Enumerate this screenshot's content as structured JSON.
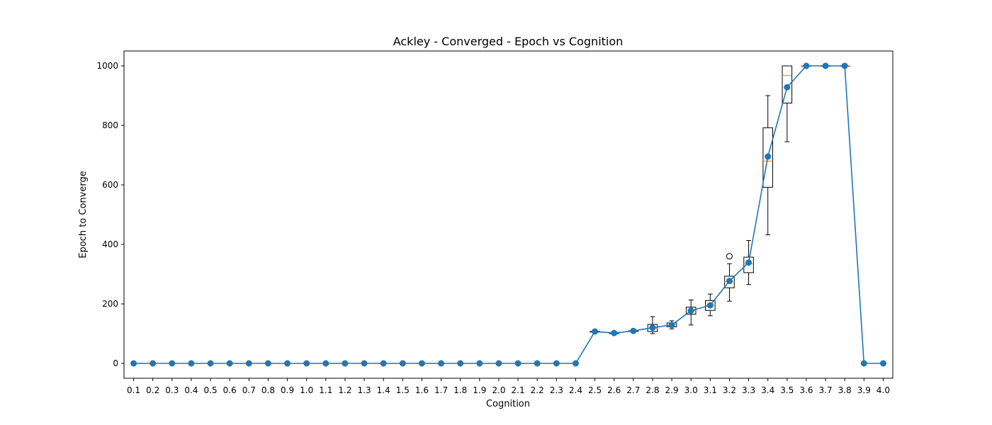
{
  "chart_data": {
    "type": "line",
    "title": "Ackley - Converged - Epoch vs Cognition",
    "xlabel": "Cognition",
    "ylabel": "Epoch to Converge",
    "ylim": [
      -50,
      1050
    ],
    "yticks": [
      0,
      200,
      400,
      600,
      800,
      1000
    ],
    "categories": [
      "0.1",
      "0.2",
      "0.3",
      "0.4",
      "0.5",
      "0.6",
      "0.7",
      "0.8",
      "0.9",
      "1.0",
      "1.1",
      "1.2",
      "1.3",
      "1.4",
      "1.5",
      "1.6",
      "1.7",
      "1.8",
      "1.9",
      "2.0",
      "2.1",
      "2.2",
      "2.3",
      "2.4",
      "2.5",
      "2.6",
      "2.7",
      "2.8",
      "2.9",
      "3.0",
      "3.1",
      "3.2",
      "3.3",
      "3.4",
      "3.5",
      "3.6",
      "3.7",
      "3.8",
      "3.9",
      "4.0"
    ],
    "series": [
      {
        "values": [
          0,
          0,
          0,
          0,
          0,
          0,
          0,
          0,
          0,
          0,
          0,
          0,
          0,
          0,
          0,
          0,
          0,
          0,
          0,
          0,
          0,
          0,
          0,
          0,
          107,
          102,
          109,
          120,
          129,
          177,
          195,
          277,
          339,
          695,
          928,
          1000,
          1000,
          1000,
          0,
          0
        ],
        "color": "#1f77b4"
      }
    ],
    "boxplots": [
      {
        "category": "2.5",
        "whislo": 105,
        "q1": 105,
        "med": 107,
        "q3": 108,
        "whishi": 109,
        "fliers": []
      },
      {
        "category": "2.6",
        "whislo": 98,
        "q1": 100,
        "med": 102,
        "q3": 104,
        "whishi": 106,
        "fliers": []
      },
      {
        "category": "2.7",
        "whislo": 106,
        "q1": 107,
        "med": 109,
        "q3": 110,
        "whishi": 112,
        "fliers": []
      },
      {
        "category": "2.8",
        "whislo": 100,
        "q1": 107,
        "med": 118,
        "q3": 131,
        "whishi": 157,
        "fliers": []
      },
      {
        "category": "2.9",
        "whislo": 116,
        "q1": 123,
        "med": 129,
        "q3": 136,
        "whishi": 143,
        "fliers": []
      },
      {
        "category": "3.0",
        "whislo": 129,
        "q1": 165,
        "med": 177,
        "q3": 189,
        "whishi": 213,
        "fliers": []
      },
      {
        "category": "3.1",
        "whislo": 160,
        "q1": 178,
        "med": 195,
        "q3": 211,
        "whishi": 233,
        "fliers": []
      },
      {
        "category": "3.2",
        "whislo": 209,
        "q1": 254,
        "med": 275,
        "q3": 293,
        "whishi": 335,
        "fliers": [
          360
        ]
      },
      {
        "category": "3.3",
        "whislo": 265,
        "q1": 305,
        "med": 335,
        "q3": 357,
        "whishi": 413,
        "fliers": []
      },
      {
        "category": "3.4",
        "whislo": 432,
        "q1": 592,
        "med": 680,
        "q3": 792,
        "whishi": 900,
        "fliers": []
      },
      {
        "category": "3.5",
        "whislo": 745,
        "q1": 875,
        "med": 968,
        "q3": 1000,
        "whishi": 1000,
        "fliers": []
      },
      {
        "category": "3.6",
        "whislo": 1000,
        "q1": 1000,
        "med": 1000,
        "q3": 1000,
        "whishi": 1000,
        "fliers": []
      },
      {
        "category": "3.7",
        "whislo": 1000,
        "q1": 1000,
        "med": 1000,
        "q3": 1000,
        "whishi": 1000,
        "fliers": []
      },
      {
        "category": "3.8",
        "whislo": 1000,
        "q1": 1000,
        "med": 1000,
        "q3": 1000,
        "whishi": 1000,
        "fliers": []
      }
    ],
    "median_color": "#ff7f0e",
    "grid": false,
    "legend": "none"
  }
}
